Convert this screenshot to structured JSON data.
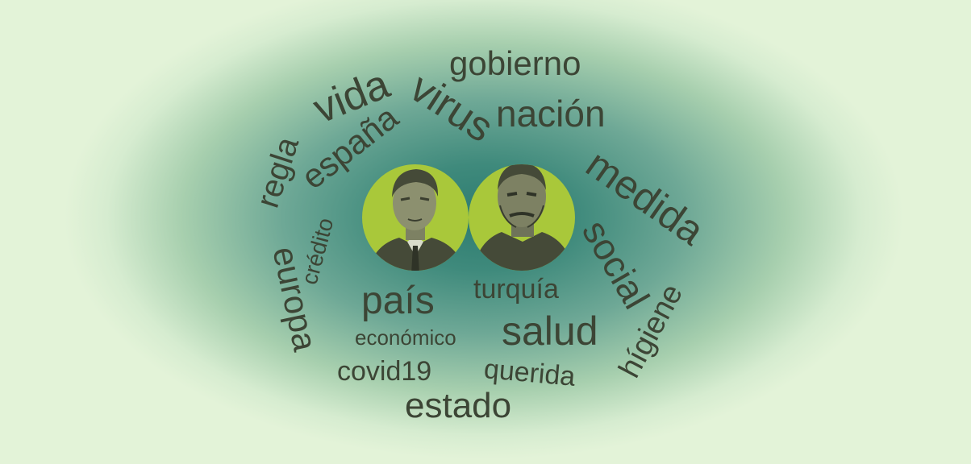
{
  "words": {
    "gobierno": "gobierno",
    "nacion": "nación",
    "virus": "virus",
    "vida": "vida",
    "espana": "españa",
    "regla": "regla",
    "credito": "crédito",
    "europa": "europa",
    "medida": "medida",
    "social": "social",
    "higiene": "hígiene",
    "pais": "país",
    "economico": "económico",
    "turquia": "turquía",
    "salud": "salud",
    "covid19": "covid19",
    "querida": "querida",
    "estado": "estado"
  },
  "colors": {
    "background": "#e3f3d8",
    "center_glow": "#2d7c70",
    "text": "#3c4535",
    "portrait_circle": "#a9c83a",
    "portrait_figure": "#454a38"
  },
  "portraits": {
    "left": "portrait-man-in-suit",
    "right": "portrait-man-older"
  }
}
